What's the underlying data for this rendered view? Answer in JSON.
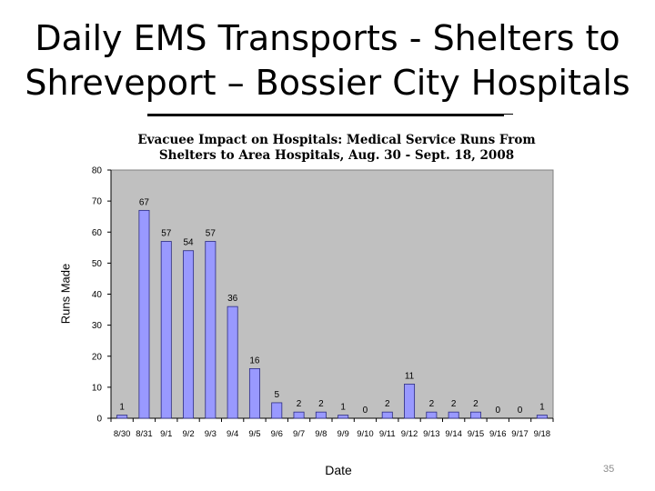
{
  "slide": {
    "title": "Daily EMS Transports - Shelters to Shreveport – Bossier City Hospitals",
    "page_number": "35"
  },
  "colors": {
    "plot_background": "#c0c0c0",
    "bar_fill": "#9999ff",
    "bar_stroke": "#2b2b80"
  },
  "chart_data": {
    "type": "bar",
    "title": "Evacuee Impact on Hospitals: Medical Service Runs From Shelters to Area Hospitals, Aug. 30 - Sept. 18, 2008",
    "xlabel": "Date",
    "ylabel": "Runs Made",
    "ylim": [
      0,
      80
    ],
    "yticks": [
      0,
      10,
      20,
      30,
      40,
      50,
      60,
      70,
      80
    ],
    "grid": false,
    "legend": "none",
    "categories": [
      "8/30",
      "8/31",
      "9/1",
      "9/2",
      "9/3",
      "9/4",
      "9/5",
      "9/6",
      "9/7",
      "9/8",
      "9/9",
      "9/10",
      "9/11",
      "9/12",
      "9/13",
      "9/14",
      "9/15",
      "9/16",
      "9/17",
      "9/18"
    ],
    "values": [
      1,
      67,
      57,
      54,
      57,
      36,
      16,
      5,
      2,
      2,
      1,
      0,
      2,
      11,
      2,
      2,
      2,
      0,
      0,
      1
    ]
  }
}
